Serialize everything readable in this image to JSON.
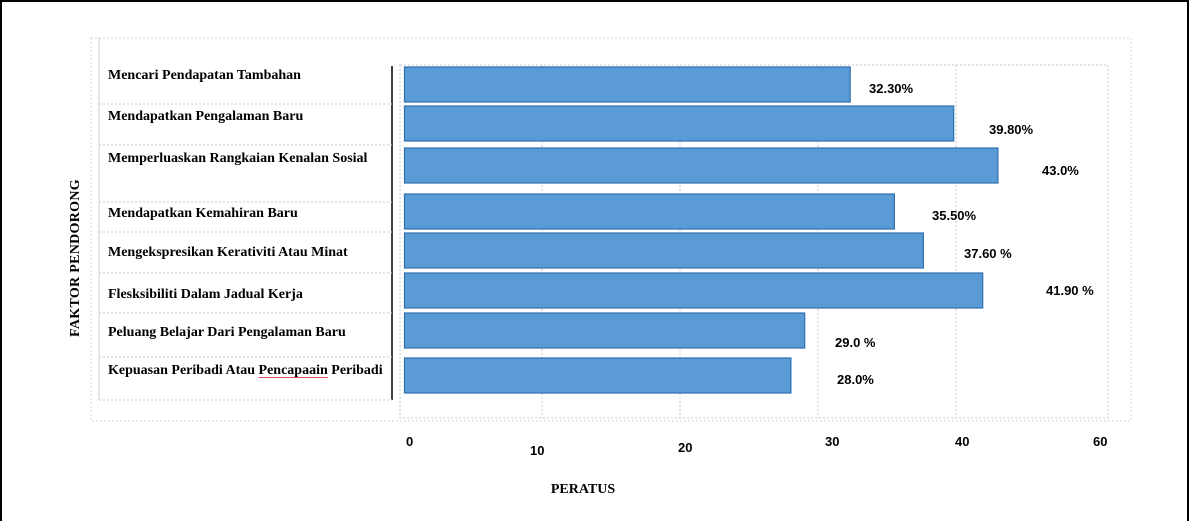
{
  "chart_data": {
    "type": "bar",
    "orientation": "horizontal",
    "categories": [
      "Mencari Pendapatan Tambahan",
      "Mendapatkan Pengalaman Baru",
      "Memperluaskan Rangkaian    Kenalan Sosial",
      "Mendapatkan Kemahiran Baru",
      "Mengekspresikan Kerativiti Atau Minat",
      "Flesksibiliti Dalam Jadual Kerja",
      "Peluang Belajar Dari Pengalaman Baru",
      "Kepuasan Peribadi Atau Pencapaain Peribadi"
    ],
    "values": [
      32.3,
      39.8,
      43.0,
      35.5,
      37.6,
      41.9,
      29.0,
      28.0
    ],
    "data_labels": [
      "32.30%",
      "39.80%",
      "43.0%",
      "35.50%",
      "37.60 %",
      "41.90 %",
      "29.0 %",
      "28.0%"
    ],
    "xlabel": "PERATUS",
    "ylabel": "FAKTOR PENDORONG",
    "xlim": [
      0,
      60
    ],
    "xticks": [
      "0",
      "10",
      "20",
      "30",
      "40",
      "60"
    ],
    "grid": true,
    "colors": {
      "bar_fill": "#5b9bd5",
      "bar_stroke": "#2e6fb0",
      "grid": "#c8c8c8"
    }
  }
}
